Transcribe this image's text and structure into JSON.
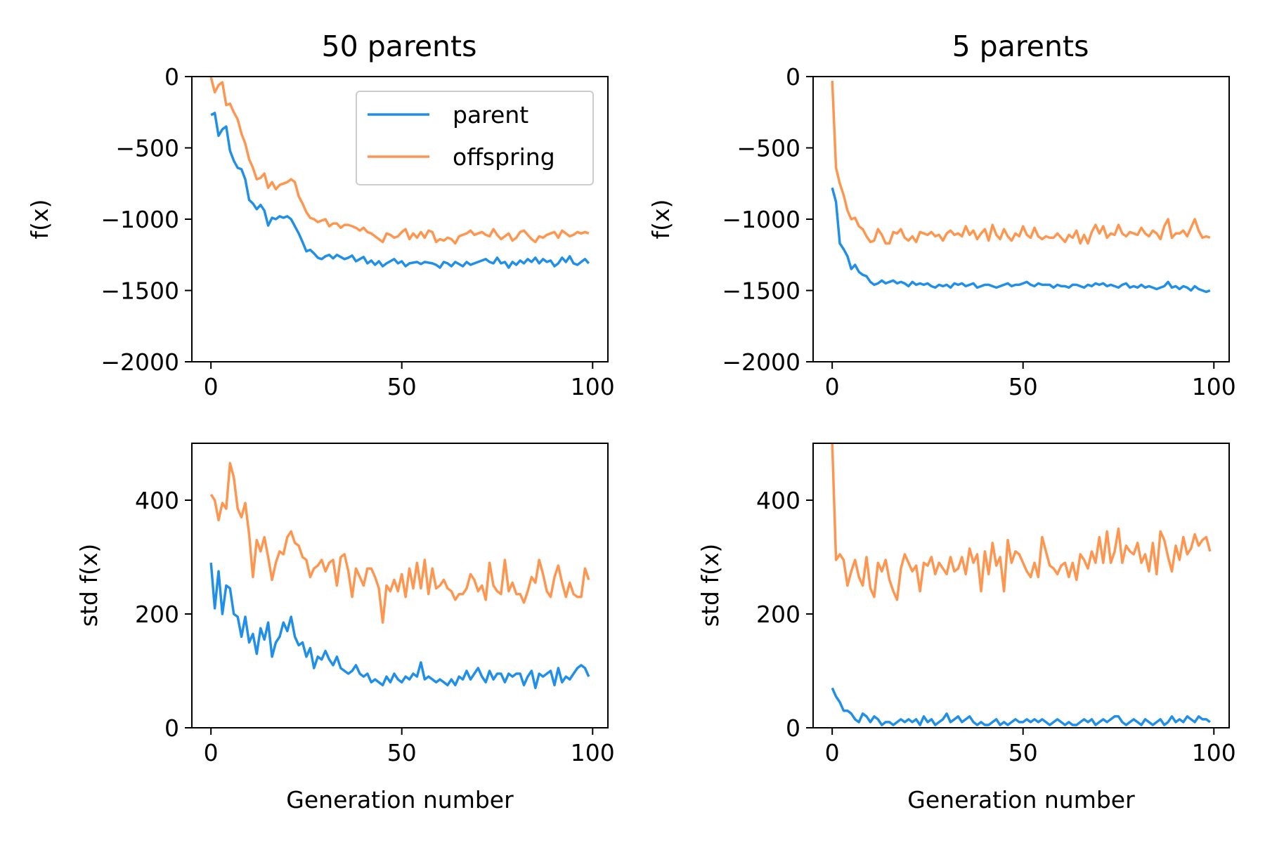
{
  "colors": {
    "parent": "#1f8fea",
    "offspring": "#ff964f"
  },
  "legend": {
    "entries": [
      "parent",
      "offspring"
    ],
    "placement": "upper-right",
    "panel": 0
  },
  "chart_data": [
    {
      "type": "line",
      "title": "50 parents",
      "xlabel": "",
      "ylabel": "f(x)",
      "xlim": [
        -5,
        104
      ],
      "ylim": [
        -2000,
        0
      ],
      "xticks": [
        0,
        50,
        100
      ],
      "yticks": [
        0,
        -500,
        -1000,
        -1500,
        -2000
      ],
      "ytick_labels": [
        "0",
        "−500",
        "−1000",
        "−1500",
        "−2000"
      ],
      "series": [
        {
          "name": "parent",
          "color": "#1f8fea",
          "values": [
            -270,
            -255,
            -415,
            -370,
            -350,
            -520,
            -590,
            -640,
            -650,
            -720,
            -865,
            -890,
            -930,
            -900,
            -940,
            -1045,
            -990,
            -1000,
            -980,
            -990,
            -980,
            -1000,
            -1050,
            -1100,
            -1160,
            -1225,
            -1215,
            -1240,
            -1270,
            -1280,
            -1260,
            -1250,
            -1275,
            -1250,
            -1265,
            -1280,
            -1270,
            -1255,
            -1295,
            -1280,
            -1265,
            -1310,
            -1290,
            -1320,
            -1295,
            -1330,
            -1310,
            -1295,
            -1280,
            -1310,
            -1295,
            -1330,
            -1310,
            -1305,
            -1300,
            -1315,
            -1300,
            -1305,
            -1310,
            -1320,
            -1340,
            -1300,
            -1310,
            -1330,
            -1300,
            -1315,
            -1330,
            -1300,
            -1320,
            -1310,
            -1300,
            -1290,
            -1280,
            -1300,
            -1310,
            -1270,
            -1310,
            -1300,
            -1340,
            -1300,
            -1320,
            -1290,
            -1310,
            -1280,
            -1300,
            -1270,
            -1310,
            -1280,
            -1300,
            -1290,
            -1330,
            -1310,
            -1270,
            -1300,
            -1260,
            -1310,
            -1320,
            -1300,
            -1280,
            -1310
          ]
        },
        {
          "name": "offspring",
          "color": "#ff964f",
          "values": [
            -5,
            -110,
            -60,
            -40,
            -200,
            -190,
            -250,
            -300,
            -400,
            -470,
            -580,
            -640,
            -720,
            -710,
            -680,
            -780,
            -740,
            -790,
            -760,
            -750,
            -740,
            -720,
            -740,
            -840,
            -890,
            -950,
            -990,
            -1000,
            -1020,
            -1010,
            -1000,
            -1050,
            -1030,
            -1030,
            -1060,
            -1040,
            -1040,
            -1050,
            -1060,
            -1080,
            -1060,
            -1090,
            -1100,
            -1120,
            -1140,
            -1160,
            -1100,
            -1110,
            -1130,
            -1120,
            -1090,
            -1070,
            -1140,
            -1100,
            -1130,
            -1090,
            -1130,
            -1080,
            -1090,
            -1160,
            -1140,
            -1150,
            -1130,
            -1140,
            -1170,
            -1120,
            -1110,
            -1100,
            -1080,
            -1110,
            -1100,
            -1090,
            -1110,
            -1120,
            -1070,
            -1110,
            -1140,
            -1120,
            -1100,
            -1150,
            -1130,
            -1090,
            -1080,
            -1110,
            -1140,
            -1160,
            -1120,
            -1130,
            -1110,
            -1100,
            -1090,
            -1130,
            -1080,
            -1100,
            -1120,
            -1110,
            -1090,
            -1100,
            -1090,
            -1100
          ]
        }
      ]
    },
    {
      "type": "line",
      "title": "5 parents",
      "xlabel": "",
      "ylabel": "f(x)",
      "xlim": [
        -5,
        104
      ],
      "ylim": [
        -2000,
        0
      ],
      "xticks": [
        0,
        50,
        100
      ],
      "yticks": [
        0,
        -500,
        -1000,
        -1500,
        -2000
      ],
      "ytick_labels": [
        "0",
        "−500",
        "−1000",
        "−1500",
        "−2000"
      ],
      "series": [
        {
          "name": "parent",
          "color": "#1f8fea",
          "values": [
            -780,
            -880,
            -1170,
            -1210,
            -1260,
            -1350,
            -1320,
            -1370,
            -1390,
            -1400,
            -1440,
            -1460,
            -1450,
            -1430,
            -1450,
            -1440,
            -1430,
            -1450,
            -1440,
            -1450,
            -1470,
            -1440,
            -1460,
            -1450,
            -1460,
            -1450,
            -1470,
            -1480,
            -1460,
            -1470,
            -1460,
            -1480,
            -1450,
            -1460,
            -1450,
            -1470,
            -1460,
            -1450,
            -1480,
            -1470,
            -1460,
            -1460,
            -1470,
            -1480,
            -1470,
            -1460,
            -1450,
            -1470,
            -1460,
            -1460,
            -1450,
            -1440,
            -1460,
            -1470,
            -1450,
            -1460,
            -1460,
            -1460,
            -1480,
            -1460,
            -1470,
            -1470,
            -1480,
            -1460,
            -1460,
            -1470,
            -1480,
            -1460,
            -1470,
            -1450,
            -1460,
            -1450,
            -1470,
            -1460,
            -1470,
            -1480,
            -1460,
            -1450,
            -1480,
            -1470,
            -1480,
            -1460,
            -1480,
            -1470,
            -1480,
            -1490,
            -1480,
            -1470,
            -1440,
            -1480,
            -1470,
            -1490,
            -1470,
            -1480,
            -1500,
            -1470,
            -1490,
            -1500,
            -1510,
            -1500
          ]
        },
        {
          "name": "offspring",
          "color": "#ff964f",
          "values": [
            -30,
            -640,
            -750,
            -830,
            -940,
            -1000,
            -990,
            -1050,
            -1070,
            -1120,
            -1160,
            -1150,
            -1070,
            -1110,
            -1170,
            -1170,
            -1090,
            -1100,
            -1070,
            -1130,
            -1150,
            -1120,
            -1160,
            -1090,
            -1100,
            -1110,
            -1090,
            -1120,
            -1110,
            -1150,
            -1100,
            -1080,
            -1110,
            -1100,
            -1120,
            -1050,
            -1110,
            -1080,
            -1140,
            -1100,
            -1070,
            -1150,
            -1040,
            -1110,
            -1140,
            -1070,
            -1120,
            -1150,
            -1100,
            -1120,
            -1050,
            -1110,
            -1130,
            -1060,
            -1120,
            -1140,
            -1120,
            -1130,
            -1130,
            -1100,
            -1130,
            -1160,
            -1110,
            -1130,
            -1080,
            -1170,
            -1110,
            -1170,
            -1090,
            -1040,
            -1100,
            -1050,
            -1130,
            -1100,
            -1110,
            -1040,
            -1100,
            -1120,
            -1090,
            -1100,
            -1110,
            -1060,
            -1100,
            -1120,
            -1080,
            -1100,
            -1140,
            -1050,
            -1000,
            -1130,
            -1100,
            -1100,
            -1080,
            -1120,
            -1060,
            -1000,
            -1080,
            -1130,
            -1120,
            -1130
          ]
        }
      ]
    },
    {
      "type": "line",
      "title": "",
      "xlabel": "Generation number",
      "ylabel": "std f(x)",
      "xlim": [
        -5,
        104
      ],
      "ylim": [
        0,
        500
      ],
      "xticks": [
        0,
        50,
        100
      ],
      "yticks": [
        0,
        200,
        400
      ],
      "ytick_labels": [
        "0",
        "200",
        "400"
      ],
      "series": [
        {
          "name": "parent",
          "color": "#1f8fea",
          "values": [
            290,
            210,
            275,
            200,
            250,
            245,
            200,
            195,
            160,
            195,
            150,
            165,
            130,
            175,
            155,
            185,
            125,
            150,
            160,
            185,
            170,
            195,
            160,
            145,
            150,
            125,
            140,
            105,
            125,
            120,
            135,
            120,
            110,
            125,
            105,
            100,
            95,
            100,
            110,
            95,
            90,
            95,
            80,
            85,
            80,
            75,
            90,
            80,
            95,
            85,
            80,
            90,
            85,
            95,
            90,
            115,
            85,
            90,
            85,
            80,
            85,
            80,
            75,
            85,
            75,
            90,
            85,
            100,
            85,
            95,
            105,
            90,
            80,
            100,
            85,
            95,
            95,
            80,
            95,
            90,
            95,
            95,
            75,
            90,
            100,
            70,
            95,
            90,
            95,
            100,
            75,
            105,
            80,
            90,
            85,
            95,
            105,
            110,
            105,
            90
          ]
        },
        {
          "name": "offspring",
          "color": "#ff964f",
          "values": [
            410,
            400,
            365,
            395,
            385,
            465,
            440,
            385,
            370,
            395,
            340,
            265,
            330,
            310,
            335,
            300,
            260,
            290,
            310,
            305,
            335,
            345,
            325,
            320,
            300,
            295,
            265,
            280,
            285,
            295,
            275,
            290,
            295,
            250,
            300,
            305,
            275,
            230,
            280,
            265,
            250,
            280,
            280,
            265,
            245,
            185,
            250,
            240,
            260,
            240,
            270,
            230,
            280,
            245,
            290,
            245,
            295,
            235,
            280,
            245,
            250,
            260,
            245,
            240,
            225,
            235,
            235,
            245,
            270,
            260,
            240,
            250,
            225,
            290,
            250,
            240,
            235,
            295,
            240,
            255,
            235,
            235,
            220,
            240,
            265,
            255,
            295,
            270,
            240,
            230,
            265,
            285,
            255,
            230,
            255,
            235,
            230,
            230,
            280,
            260
          ]
        }
      ]
    },
    {
      "type": "line",
      "title": "",
      "xlabel": "Generation number",
      "ylabel": "std f(x)",
      "xlim": [
        -5,
        104
      ],
      "ylim": [
        0,
        500
      ],
      "xticks": [
        0,
        50,
        100
      ],
      "yticks": [
        0,
        200,
        400
      ],
      "ytick_labels": [
        "0",
        "200",
        "400"
      ],
      "series": [
        {
          "name": "parent",
          "color": "#1f8fea",
          "values": [
            70,
            55,
            45,
            30,
            30,
            25,
            15,
            10,
            25,
            20,
            10,
            20,
            15,
            5,
            10,
            10,
            5,
            10,
            15,
            10,
            15,
            10,
            15,
            5,
            20,
            10,
            15,
            5,
            10,
            15,
            25,
            10,
            15,
            20,
            10,
            15,
            20,
            10,
            5,
            10,
            5,
            5,
            10,
            15,
            5,
            10,
            5,
            10,
            15,
            10,
            10,
            15,
            10,
            15,
            10,
            15,
            10,
            5,
            10,
            15,
            10,
            5,
            10,
            5,
            5,
            10,
            15,
            10,
            15,
            5,
            10,
            15,
            10,
            15,
            20,
            20,
            10,
            5,
            10,
            15,
            10,
            5,
            15,
            10,
            5,
            10,
            15,
            5,
            10,
            20,
            10,
            15,
            10,
            20,
            15,
            10,
            20,
            15,
            15,
            10
          ]
        },
        {
          "name": "offspring",
          "color": "#ff964f",
          "values": [
            500,
            295,
            305,
            295,
            250,
            275,
            295,
            265,
            250,
            300,
            245,
            230,
            290,
            275,
            295,
            260,
            240,
            225,
            280,
            305,
            290,
            275,
            285,
            240,
            290,
            285,
            300,
            270,
            290,
            280,
            270,
            300,
            275,
            280,
            300,
            270,
            315,
            290,
            305,
            240,
            310,
            270,
            325,
            285,
            300,
            240,
            330,
            290,
            310,
            305,
            290,
            275,
            265,
            290,
            265,
            335,
            310,
            285,
            280,
            270,
            285,
            290,
            265,
            290,
            260,
            305,
            295,
            280,
            310,
            290,
            335,
            290,
            345,
            290,
            310,
            350,
            290,
            320,
            310,
            305,
            325,
            290,
            305,
            275,
            325,
            270,
            345,
            330,
            300,
            275,
            320,
            295,
            335,
            305,
            315,
            340,
            320,
            330,
            335,
            310
          ]
        }
      ]
    }
  ]
}
